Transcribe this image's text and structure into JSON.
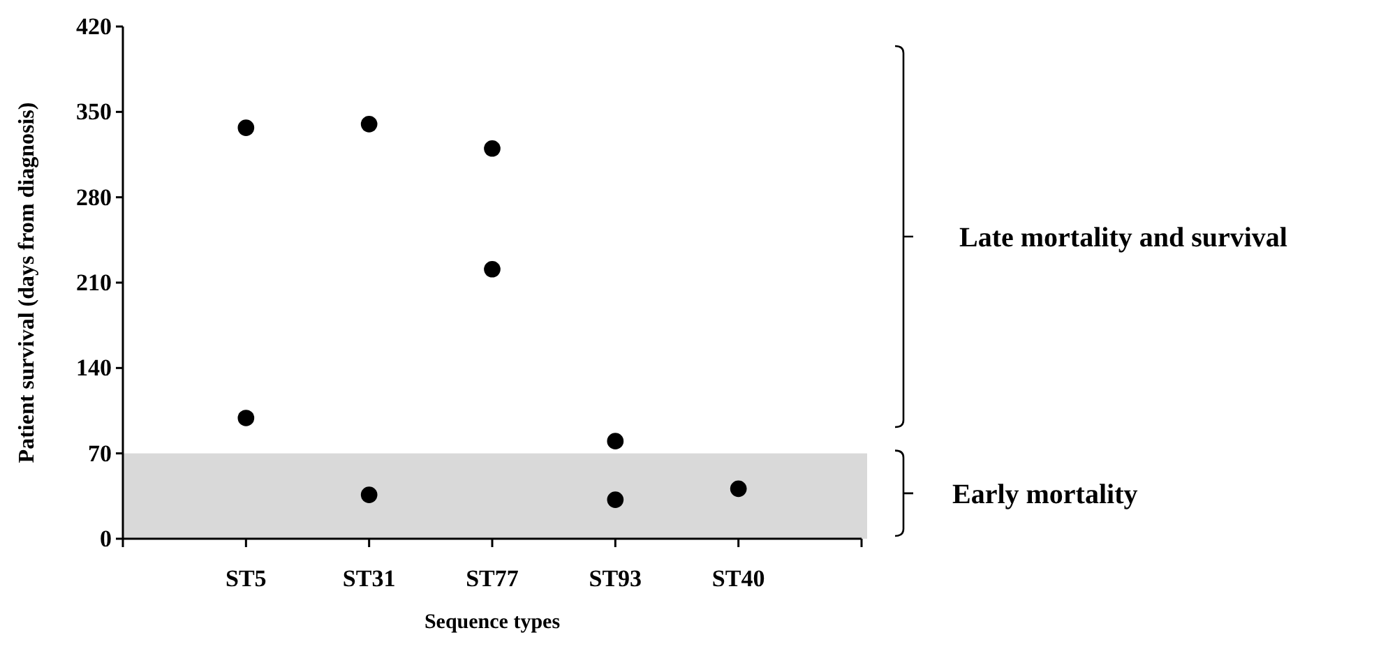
{
  "chart_data": {
    "type": "scatter",
    "xlabel": "Sequence types",
    "ylabel": "Patient survival (days from diagnosis)",
    "categories": [
      "ST5",
      "ST31",
      "ST77",
      "ST93",
      "ST40"
    ],
    "series": [
      {
        "color": "#000000",
        "x": [
          "ST5",
          "ST5",
          "ST31",
          "ST31",
          "ST77",
          "ST77",
          "ST93",
          "ST93",
          "ST40"
        ],
        "values": [
          337,
          99,
          340,
          36,
          320,
          221,
          80,
          32,
          41
        ]
      }
    ],
    "ylim": [
      0,
      420
    ],
    "yticks": [
      0,
      70,
      140,
      210,
      280,
      350,
      420
    ],
    "marker": "circle",
    "grid": false,
    "bands": [
      {
        "axis": "y",
        "from": 0,
        "to": 70,
        "color": "#d9d9d9"
      }
    ],
    "annotations": [
      "Late mortality and survival",
      "Early mortality"
    ]
  }
}
